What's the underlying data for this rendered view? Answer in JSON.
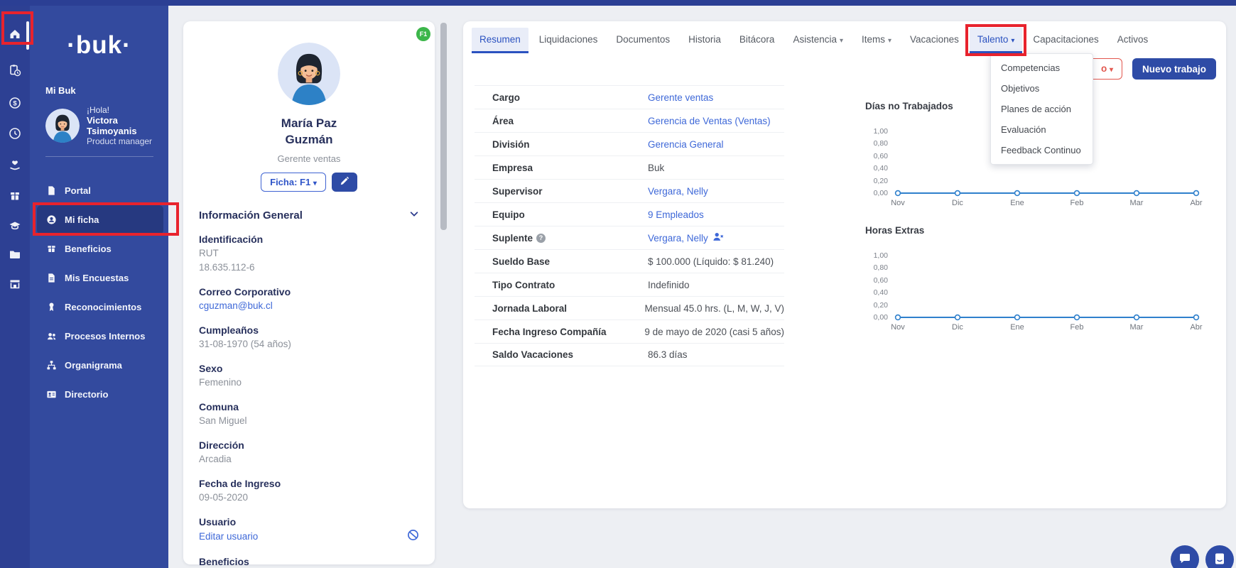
{
  "colors": {
    "accent_blue": "#2e4ba6",
    "link_blue": "#3e68d8",
    "sidebar_blue": "#334a9e",
    "rail_blue": "#2d4093",
    "annotation_red": "#e8232d",
    "badge_green": "#3cb64a",
    "chart_line": "#2f80cc"
  },
  "rail": {
    "icons": [
      {
        "name": "home",
        "active": true
      },
      {
        "name": "clipboard-clock"
      },
      {
        "name": "dollar-circle"
      },
      {
        "name": "clock"
      },
      {
        "name": "hand-heart"
      },
      {
        "name": "gift-box"
      },
      {
        "name": "graduation-cap"
      },
      {
        "name": "folder"
      },
      {
        "name": "storefront"
      }
    ]
  },
  "sidebar": {
    "logo": "·buk·",
    "section_label": "Mi Buk",
    "user": {
      "greeting": "¡Hola!",
      "name": "Victora Tsimoyanis",
      "role": "Product manager"
    },
    "items": [
      {
        "label": "Portal",
        "icon": "document"
      },
      {
        "label": "Mi ficha",
        "icon": "person-circle",
        "active": true,
        "highlighted": true
      },
      {
        "label": "Beneficios",
        "icon": "gift-box"
      },
      {
        "label": "Mis Encuestas",
        "icon": "document"
      },
      {
        "label": "Reconocimientos",
        "icon": "medal"
      },
      {
        "label": "Procesos Internos",
        "icon": "people"
      },
      {
        "label": "Organigrama",
        "icon": "org-chart"
      },
      {
        "label": "Directorio",
        "icon": "contact-card"
      }
    ]
  },
  "profile": {
    "badge": "F1",
    "name_line1": "María Paz",
    "name_line2": "Guzmán",
    "role": "Gerente ventas",
    "ficha_button": "Ficha: F1",
    "section_title": "Información General",
    "fields": [
      {
        "label": "Identificación",
        "line1": "RUT",
        "line2": "18.635.112-6"
      },
      {
        "label": "Correo Corporativo",
        "line1": "cguzman@buk.cl",
        "link": true
      },
      {
        "label": "Cumpleaños",
        "line1": "31-08-1970 (54 años)"
      },
      {
        "label": "Sexo",
        "line1": "Femenino"
      },
      {
        "label": "Comuna",
        "line1": "San Miguel"
      },
      {
        "label": "Dirección",
        "line1": "Arcadia"
      },
      {
        "label": "Fecha de Ingreso",
        "line1": "09-05-2020"
      },
      {
        "label": "Usuario",
        "line1": "Editar usuario",
        "link": true
      },
      {
        "label": "Beneficios"
      }
    ]
  },
  "main": {
    "tabs": [
      {
        "label": "Resumen",
        "active": true
      },
      {
        "label": "Liquidaciones"
      },
      {
        "label": "Documentos"
      },
      {
        "label": "Historia"
      },
      {
        "label": "Bitácora"
      },
      {
        "label": "Asistencia",
        "caret": true
      },
      {
        "label": "Items",
        "caret": true
      },
      {
        "label": "Vacaciones"
      },
      {
        "label": "Talento",
        "caret": true,
        "active": true,
        "highlighted": true
      },
      {
        "label": "Capacitaciones"
      },
      {
        "label": "Activos"
      }
    ],
    "talento_menu": [
      {
        "label": "Competencias"
      },
      {
        "label": "Objetivos"
      },
      {
        "label": "Planes de acción"
      },
      {
        "label": "Evaluación"
      },
      {
        "label": "Feedback Continuo"
      }
    ],
    "actions": {
      "partially_hidden_button_visible_text": "o",
      "new_job_label": "Nuevo trabajo"
    },
    "info_rows": [
      {
        "label": "Cargo",
        "value": "Gerente ventas",
        "link": true
      },
      {
        "label": "Área",
        "value": "Gerencia de Ventas (Ventas)",
        "link": true
      },
      {
        "label": "División",
        "value": "Gerencia General",
        "link": true
      },
      {
        "label": "Empresa",
        "value": "Buk"
      },
      {
        "label": "Supervisor",
        "value": "Vergara, Nelly",
        "link": true
      },
      {
        "label": "Equipo",
        "value": "9 Empleados",
        "link": true
      },
      {
        "label": "Suplente",
        "value": "Vergara, Nelly",
        "link": true,
        "help_icon": true,
        "remove_person_icon": true
      },
      {
        "label": "Sueldo Base",
        "value": "$ 100.000 (Líquido: $ 81.240)"
      },
      {
        "label": "Tipo Contrato",
        "value": "Indefinido"
      },
      {
        "label": "Jornada Laboral",
        "value": "Mensual 45.0 hrs. (L, M, W, J, V)"
      },
      {
        "label": "Fecha Ingreso Compañía",
        "value": "9 de mayo de 2020 (casi 5 años)"
      },
      {
        "label": "Saldo Vacaciones",
        "value": "86.3 días"
      }
    ]
  },
  "chart_data": [
    {
      "type": "line",
      "title": "Días no Trabajados",
      "x": [
        "Nov",
        "Dic",
        "Ene",
        "Feb",
        "Mar",
        "Abr"
      ],
      "values": [
        0,
        0,
        0,
        0,
        0,
        0
      ],
      "ytick_labels": [
        "1,00",
        "0,80",
        "0,60",
        "0,40",
        "0,20",
        "0,00"
      ],
      "ylim": [
        0,
        1
      ],
      "grid": false,
      "legend": false,
      "line_color": "#2f80cc"
    },
    {
      "type": "line",
      "title": "Horas Extras",
      "x": [
        "Nov",
        "Dic",
        "Ene",
        "Feb",
        "Mar",
        "Abr"
      ],
      "values": [
        0,
        0,
        0,
        0,
        0,
        0
      ],
      "ytick_labels": [
        "1,00",
        "0,80",
        "0,60",
        "0,40",
        "0,20",
        "0,00"
      ],
      "ylim": [
        0,
        1
      ],
      "grid": false,
      "legend": false,
      "line_color": "#2f80cc"
    }
  ]
}
